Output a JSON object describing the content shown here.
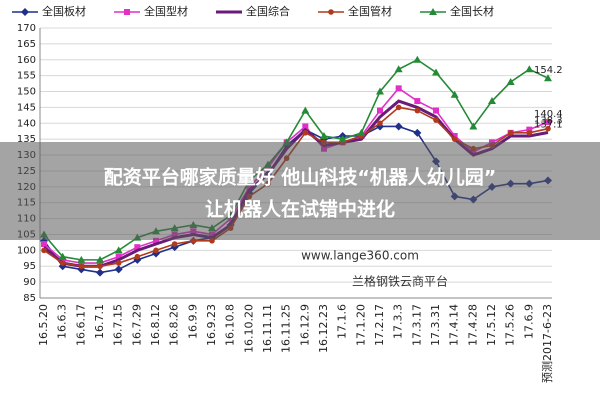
{
  "chart_data": {
    "type": "line",
    "categories": [
      "16.5.20",
      "16.6.3",
      "16.6.17",
      "16.7.1",
      "16.7.15",
      "16.7.29",
      "16.8.12",
      "16.8.26",
      "16.9.9",
      "16.9.23",
      "16.10.8",
      "16.10.20",
      "16.11.11",
      "16.11.25",
      "16.12.9",
      "16.12.23",
      "17.1.6",
      "17.1.20",
      "17.2.17",
      "17.3.3",
      "17.3.17",
      "17.3.31",
      "17.4.14",
      "17.4.28",
      "17.5.12",
      "17.5.26",
      "17.6.9",
      "预测2017-6-23"
    ],
    "series": [
      {
        "name": "全国板材",
        "color": "#1f2f8a",
        "marker": "diamond",
        "end_label": false,
        "values": [
          103,
          95,
          94,
          93,
          94,
          97,
          99,
          101,
          103,
          104,
          108,
          118,
          124,
          133,
          138,
          135,
          136,
          136,
          139,
          139,
          137,
          128,
          117,
          116,
          120,
          121,
          121,
          122
        ]
      },
      {
        "name": "全国型材",
        "color": "#e030c8",
        "marker": "square",
        "end_label": true,
        "values": [
          102,
          97,
          96,
          96,
          98,
          101,
          103,
          105,
          106,
          105,
          110,
          120,
          126,
          134,
          139,
          132,
          134,
          136,
          144,
          151,
          147,
          144,
          136,
          131,
          134,
          137,
          138,
          140.4
        ]
      },
      {
        "name": "全国综合",
        "color": "#6a1a78",
        "marker": "none",
        "end_label": true,
        "values": [
          101,
          96,
          95,
          95,
          97,
          100,
          102,
          104,
          105,
          104,
          108,
          119,
          124,
          132,
          138,
          133,
          134,
          135,
          142,
          147,
          145,
          142,
          135,
          130,
          132,
          136,
          136,
          137.1
        ]
      },
      {
        "name": "全国管材",
        "color": "#b03a1e",
        "marker": "circle",
        "end_label": true,
        "values": [
          100,
          96,
          95,
          95,
          96,
          98,
          100,
          102,
          103,
          103,
          107,
          117,
          121,
          129,
          137,
          134,
          134,
          136,
          140,
          145,
          144,
          141,
          135,
          132,
          133,
          137,
          137,
          138.3
        ]
      },
      {
        "name": "全国长材",
        "color": "#258a35",
        "marker": "triangle",
        "end_label": true,
        "values": [
          105,
          98,
          97,
          97,
          100,
          104,
          106,
          107,
          108,
          107,
          111,
          122,
          127,
          134,
          144,
          136,
          135,
          137,
          150,
          157,
          160,
          156,
          149,
          139,
          147,
          153,
          157,
          154.2
        ]
      }
    ],
    "ylim": [
      85,
      170
    ],
    "yticks": [
      85,
      90,
      95,
      100,
      105,
      110,
      115,
      120,
      125,
      130,
      135,
      140,
      145,
      150,
      155,
      160,
      165,
      170
    ],
    "grid": true
  },
  "banner": [
    "配资平台哪家质量好 他山科技“机器人幼儿园”",
    "让机器人在试错中进化"
  ],
  "watermark": [
    "www.lange360.com",
    "兰格钢铁云商平台"
  ]
}
